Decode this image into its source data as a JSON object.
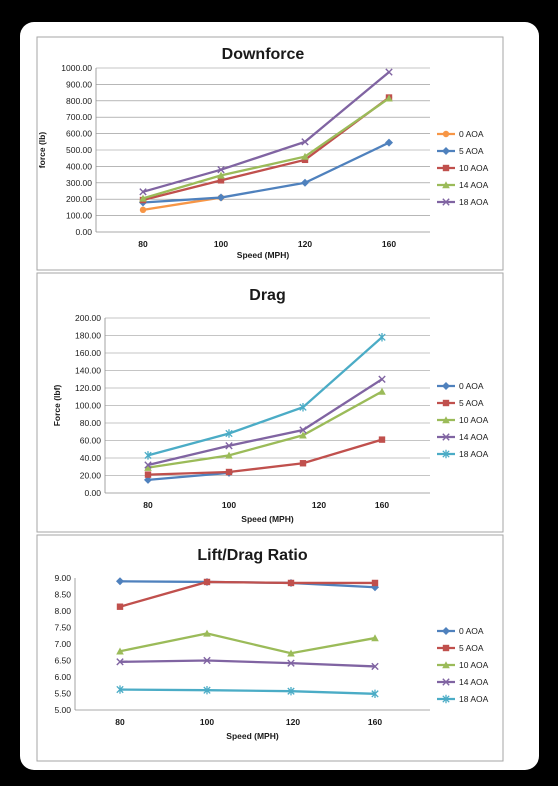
{
  "chart_data": [
    {
      "type": "line",
      "title": "Downforce",
      "xlabel": "Speed (MPH)",
      "ylabel": "force (lb)",
      "categories": [
        "80",
        "100",
        "120",
        "160"
      ],
      "ylim": [
        0,
        1000
      ],
      "yticks": [
        "0.00",
        "100.00",
        "200.00",
        "300.00",
        "400.00",
        "500.00",
        "600.00",
        "700.00",
        "800.00",
        "900.00",
        "1000.00"
      ],
      "grid": true,
      "legend_position": "right",
      "series": [
        {
          "name": "0 AOA",
          "values": [
            135,
            210,
            null,
            820
          ],
          "color": "#f79646",
          "marker": "circle"
        },
        {
          "name": "5 AOA",
          "values": [
            180,
            210,
            300,
            545
          ],
          "color": "#4f81bd",
          "marker": "diamond"
        },
        {
          "name": "10 AOA",
          "values": [
            195,
            315,
            440,
            820
          ],
          "color": "#c0504d",
          "marker": "square"
        },
        {
          "name": "14 AOA",
          "values": [
            205,
            345,
            460,
            815
          ],
          "color": "#9bbb59",
          "marker": "triangle"
        },
        {
          "name": "18 AOA",
          "values": [
            245,
            380,
            550,
            975
          ],
          "color": "#8064a2",
          "marker": "x"
        }
      ]
    },
    {
      "type": "line",
      "title": "Drag",
      "xlabel": "Speed (MPH)",
      "ylabel": "Force (lbf)",
      "categories": [
        "80",
        "100",
        "120",
        "160"
      ],
      "ylim": [
        0,
        200
      ],
      "yticks": [
        "0.00",
        "20.00",
        "40.00",
        "60.00",
        "80.00",
        "100.00",
        "120.00",
        "140.00",
        "160.00",
        "180.00",
        "200.00"
      ],
      "grid": true,
      "legend_position": "right",
      "series": [
        {
          "name": "0 AOA",
          "values": [
            15,
            23,
            null,
            null
          ],
          "color": "#4f81bd",
          "marker": "diamond"
        },
        {
          "name": "5 AOA",
          "values": [
            21,
            24,
            34,
            61
          ],
          "color": "#c0504d",
          "marker": "square"
        },
        {
          "name": "10 AOA",
          "values": [
            29,
            43,
            66,
            116
          ],
          "color": "#9bbb59",
          "marker": "triangle"
        },
        {
          "name": "14 AOA",
          "values": [
            32,
            54,
            72,
            130
          ],
          "color": "#8064a2",
          "marker": "x"
        },
        {
          "name": "18 AOA",
          "values": [
            43,
            68,
            98,
            178
          ],
          "color": "#4bacc6",
          "marker": "star"
        }
      ]
    },
    {
      "type": "line",
      "title": "Lift/Drag Ratio",
      "xlabel": "Speed (MPH)",
      "ylabel": "",
      "categories": [
        "80",
        "100",
        "120",
        "160"
      ],
      "ylim": [
        5,
        9
      ],
      "yticks": [
        "5.00",
        "5.50",
        "6.00",
        "6.50",
        "7.00",
        "7.50",
        "8.00",
        "8.50",
        "9.00"
      ],
      "grid": false,
      "legend_position": "right",
      "series": [
        {
          "name": "0 AOA",
          "values": [
            8.9,
            8.88,
            8.85,
            8.72
          ],
          "color": "#4f81bd",
          "marker": "diamond"
        },
        {
          "name": "5 AOA",
          "values": [
            8.13,
            8.88,
            8.85,
            8.85
          ],
          "color": "#c0504d",
          "marker": "square"
        },
        {
          "name": "10 AOA",
          "values": [
            6.78,
            7.32,
            6.72,
            7.18
          ],
          "color": "#9bbb59",
          "marker": "triangle"
        },
        {
          "name": "14 AOA",
          "values": [
            6.46,
            6.5,
            6.42,
            6.32
          ],
          "color": "#8064a2",
          "marker": "x"
        },
        {
          "name": "18 AOA",
          "values": [
            5.62,
            5.6,
            5.57,
            5.49
          ],
          "color": "#4bacc6",
          "marker": "star"
        }
      ]
    }
  ]
}
